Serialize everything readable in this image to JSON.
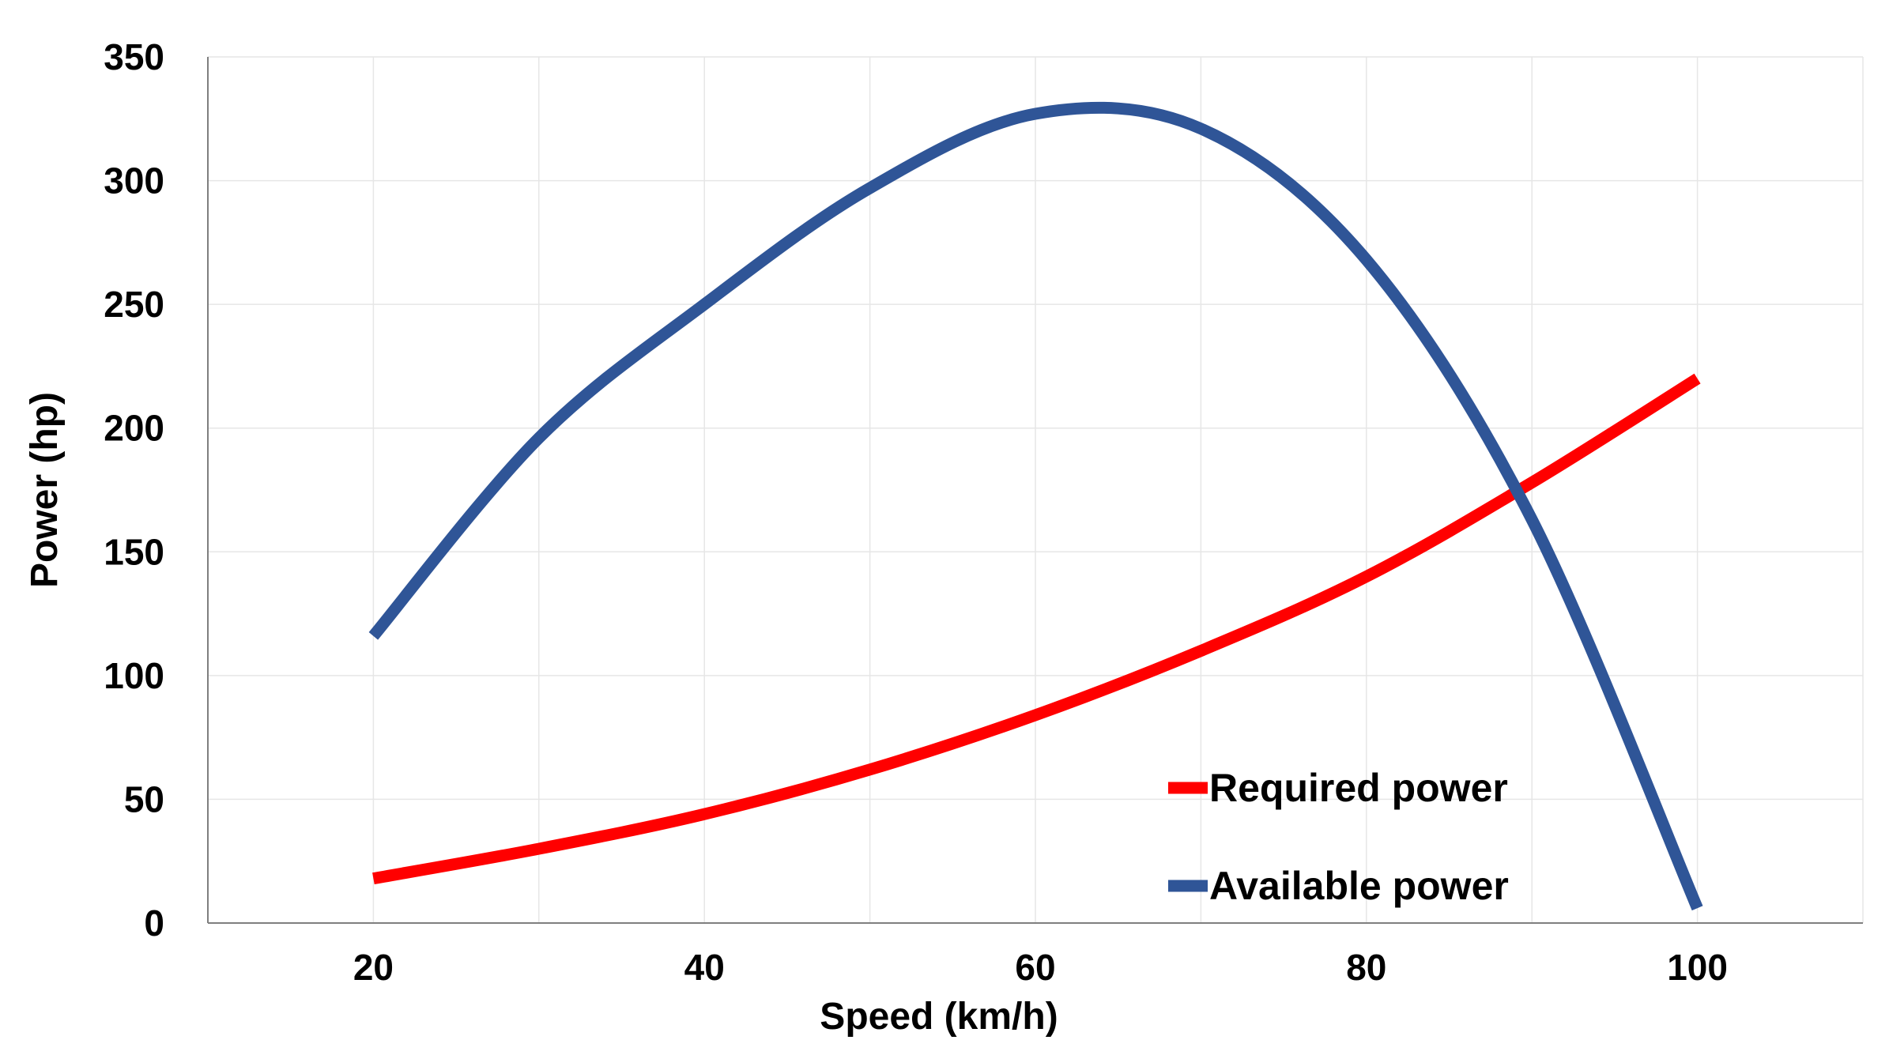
{
  "chart_data": {
    "type": "line",
    "title": "",
    "xlabel": "Speed (km/h)",
    "ylabel": "Power (hp)",
    "xlim": [
      10,
      110
    ],
    "ylim": [
      0,
      350
    ],
    "xticks": [
      20,
      40,
      60,
      80,
      100
    ],
    "yticks": [
      0,
      50,
      100,
      150,
      200,
      250,
      300,
      350
    ],
    "grid": true,
    "legend_position": "bottom-right",
    "series": [
      {
        "name": "Required power",
        "color": "#ff0000",
        "x": [
          20,
          30,
          40,
          50,
          60,
          70,
          80,
          90,
          100
        ],
        "y": [
          18,
          30,
          44,
          62,
          84,
          110,
          140,
          178,
          220
        ]
      },
      {
        "name": "Available power",
        "color": "#2f5597",
        "x": [
          20,
          30,
          40,
          50,
          60,
          70,
          80,
          90,
          100
        ],
        "y": [
          116,
          196,
          250,
          297,
          327,
          321,
          268,
          163,
          6
        ]
      }
    ]
  }
}
